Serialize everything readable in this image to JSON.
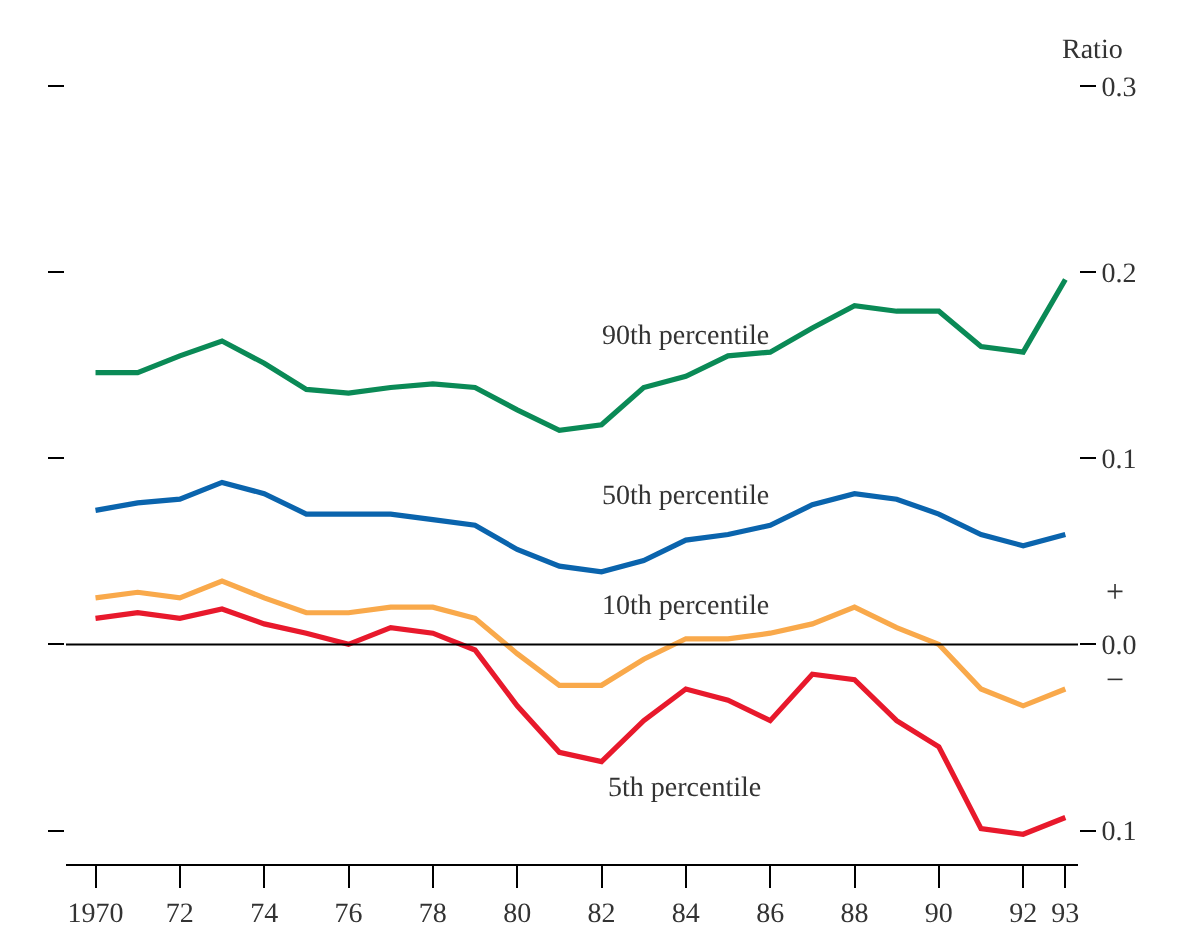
{
  "chart_data": {
    "type": "line",
    "ylabel": "Ratio",
    "x": [
      1970,
      1971,
      1972,
      1973,
      1974,
      1975,
      1976,
      1977,
      1978,
      1979,
      1980,
      1981,
      1982,
      1983,
      1984,
      1985,
      1986,
      1987,
      1988,
      1989,
      1990,
      1991,
      1992,
      1993
    ],
    "series": [
      {
        "name": "90th percentile",
        "color": "#0a8a56",
        "values": [
          0.146,
          0.146,
          0.155,
          0.163,
          0.151,
          0.137,
          0.135,
          0.138,
          0.14,
          0.138,
          0.126,
          0.115,
          0.118,
          0.138,
          0.144,
          0.155,
          0.157,
          0.17,
          0.182,
          0.179,
          0.179,
          0.16,
          0.157,
          0.196
        ]
      },
      {
        "name": "50th percentile",
        "color": "#0a64ad",
        "values": [
          0.072,
          0.076,
          0.078,
          0.087,
          0.081,
          0.07,
          0.07,
          0.07,
          0.067,
          0.064,
          0.051,
          0.042,
          0.039,
          0.045,
          0.056,
          0.059,
          0.064,
          0.075,
          0.081,
          0.078,
          0.07,
          0.059,
          0.053,
          0.059
        ]
      },
      {
        "name": "10th percentile",
        "color": "#f9a94b",
        "values": [
          0.025,
          0.028,
          0.025,
          0.034,
          0.025,
          0.017,
          0.017,
          0.02,
          0.02,
          0.014,
          -0.005,
          -0.022,
          -0.022,
          -0.008,
          0.003,
          0.003,
          0.006,
          0.011,
          0.02,
          0.009,
          0.0,
          -0.024,
          -0.033,
          -0.024
        ]
      },
      {
        "name": "5th percentile",
        "color": "#e8192c",
        "values": [
          0.014,
          0.017,
          0.014,
          0.019,
          0.011,
          0.006,
          0.0,
          0.009,
          0.006,
          -0.003,
          -0.033,
          -0.058,
          -0.063,
          -0.041,
          -0.024,
          -0.03,
          -0.041,
          -0.016,
          -0.019,
          -0.041,
          -0.055,
          -0.099,
          -0.102,
          -0.093
        ]
      }
    ],
    "xlim": [
      1969.3,
      1993.3
    ],
    "xticks": [
      {
        "value": 1970,
        "label": "1970"
      },
      {
        "value": 1972,
        "label": "72"
      },
      {
        "value": 1974,
        "label": "74"
      },
      {
        "value": 1976,
        "label": "76"
      },
      {
        "value": 1978,
        "label": "78"
      },
      {
        "value": 1980,
        "label": "80"
      },
      {
        "value": 1982,
        "label": "82"
      },
      {
        "value": 1984,
        "label": "84"
      },
      {
        "value": 1986,
        "label": "86"
      },
      {
        "value": 1988,
        "label": "88"
      },
      {
        "value": 1990,
        "label": "90"
      },
      {
        "value": 1992,
        "label": "92"
      },
      {
        "value": 1993,
        "label": "93"
      }
    ],
    "ylim": [
      -0.118,
      0.3
    ],
    "yticks": [
      {
        "value": -0.1,
        "label": "0.1"
      },
      {
        "value": 0.0,
        "label": "0.0"
      },
      {
        "value": 0.1,
        "label": "0.1"
      },
      {
        "value": 0.2,
        "label": "0.2"
      },
      {
        "value": 0.3,
        "label": "0.3"
      }
    ],
    "ref_lines": [
      {
        "axis": "y",
        "value": 0,
        "color": "#000000"
      }
    ],
    "annotations": [
      "+",
      "−"
    ],
    "legend": false,
    "line_style": "solid",
    "marker": "none"
  }
}
